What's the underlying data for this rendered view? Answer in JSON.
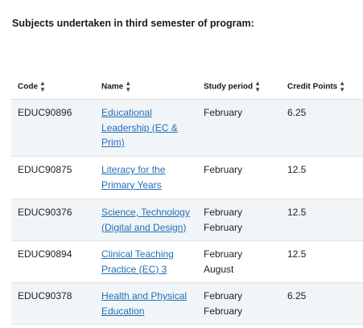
{
  "heading": "Subjects undertaken in third semester of program:",
  "table": {
    "columns": [
      {
        "label": "Code",
        "sort_icon": "sort-icon"
      },
      {
        "label": "Name",
        "sort_icon": "sort-icon"
      },
      {
        "label": "Study period",
        "sort_icon": "sort-icon"
      },
      {
        "label": "Credit Points",
        "sort_icon": "sort-icon"
      }
    ],
    "rows": [
      {
        "code": "EDUC90896",
        "name": "Educational Leadership (EC & Prim)",
        "periods": [
          "February"
        ],
        "credit": "6.25"
      },
      {
        "code": "EDUC90875",
        "name": "Literacy for the Primary Years",
        "periods": [
          "February"
        ],
        "credit": "12.5"
      },
      {
        "code": "EDUC90376",
        "name": "Science, Technology (Digital and Design)",
        "periods": [
          "February",
          "February"
        ],
        "credit": "12.5"
      },
      {
        "code": "EDUC90894",
        "name": "Clinical Teaching Practice (EC) 3",
        "periods": [
          "February",
          "August"
        ],
        "credit": "12.5"
      },
      {
        "code": "EDUC90378",
        "name": "Health and Physical Education",
        "periods": [
          "February",
          "February"
        ],
        "credit": "6.25"
      }
    ]
  },
  "colors": {
    "link": "#1f6fb8",
    "shaded_row": "#f2f5f8"
  }
}
